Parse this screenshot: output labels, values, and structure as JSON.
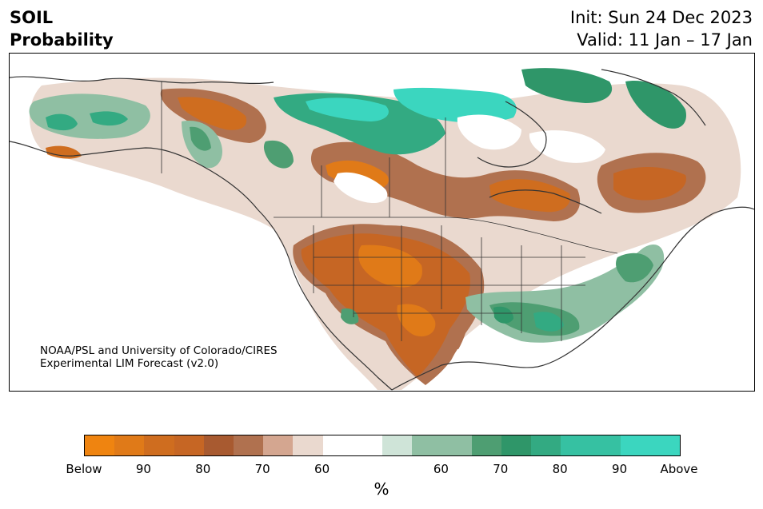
{
  "header": {
    "title_line1": "SOIL",
    "title_line2": "Probability",
    "init": "Init: Sun 24 Dec 2023",
    "valid": "Valid: 11 Jan – 17 Jan"
  },
  "map": {
    "credit_line1": "NOAA/PSL and University of Colorado/CIRES",
    "credit_line2": "Experimental LIM Forecast (v2.0)"
  },
  "colorbar": {
    "colors": [
      "#ef8410",
      "#e07a18",
      "#cf6d1f",
      "#c66624",
      "#a85a30",
      "#b0714f",
      "#d4a690",
      "#ead9cf",
      "#ffffff",
      "#ffffff",
      "#cfe4d8",
      "#8fbfa3",
      "#8fbfa3",
      "#4e9e72",
      "#2f9669",
      "#33aa82",
      "#36c1a2",
      "#36c1a2",
      "#3bd6bf",
      "#3bd6bf"
    ],
    "tick_labels": [
      "Below",
      "90",
      "80",
      "70",
      "60",
      "60",
      "70",
      "80",
      "90",
      "Above"
    ],
    "unit": "%"
  }
}
